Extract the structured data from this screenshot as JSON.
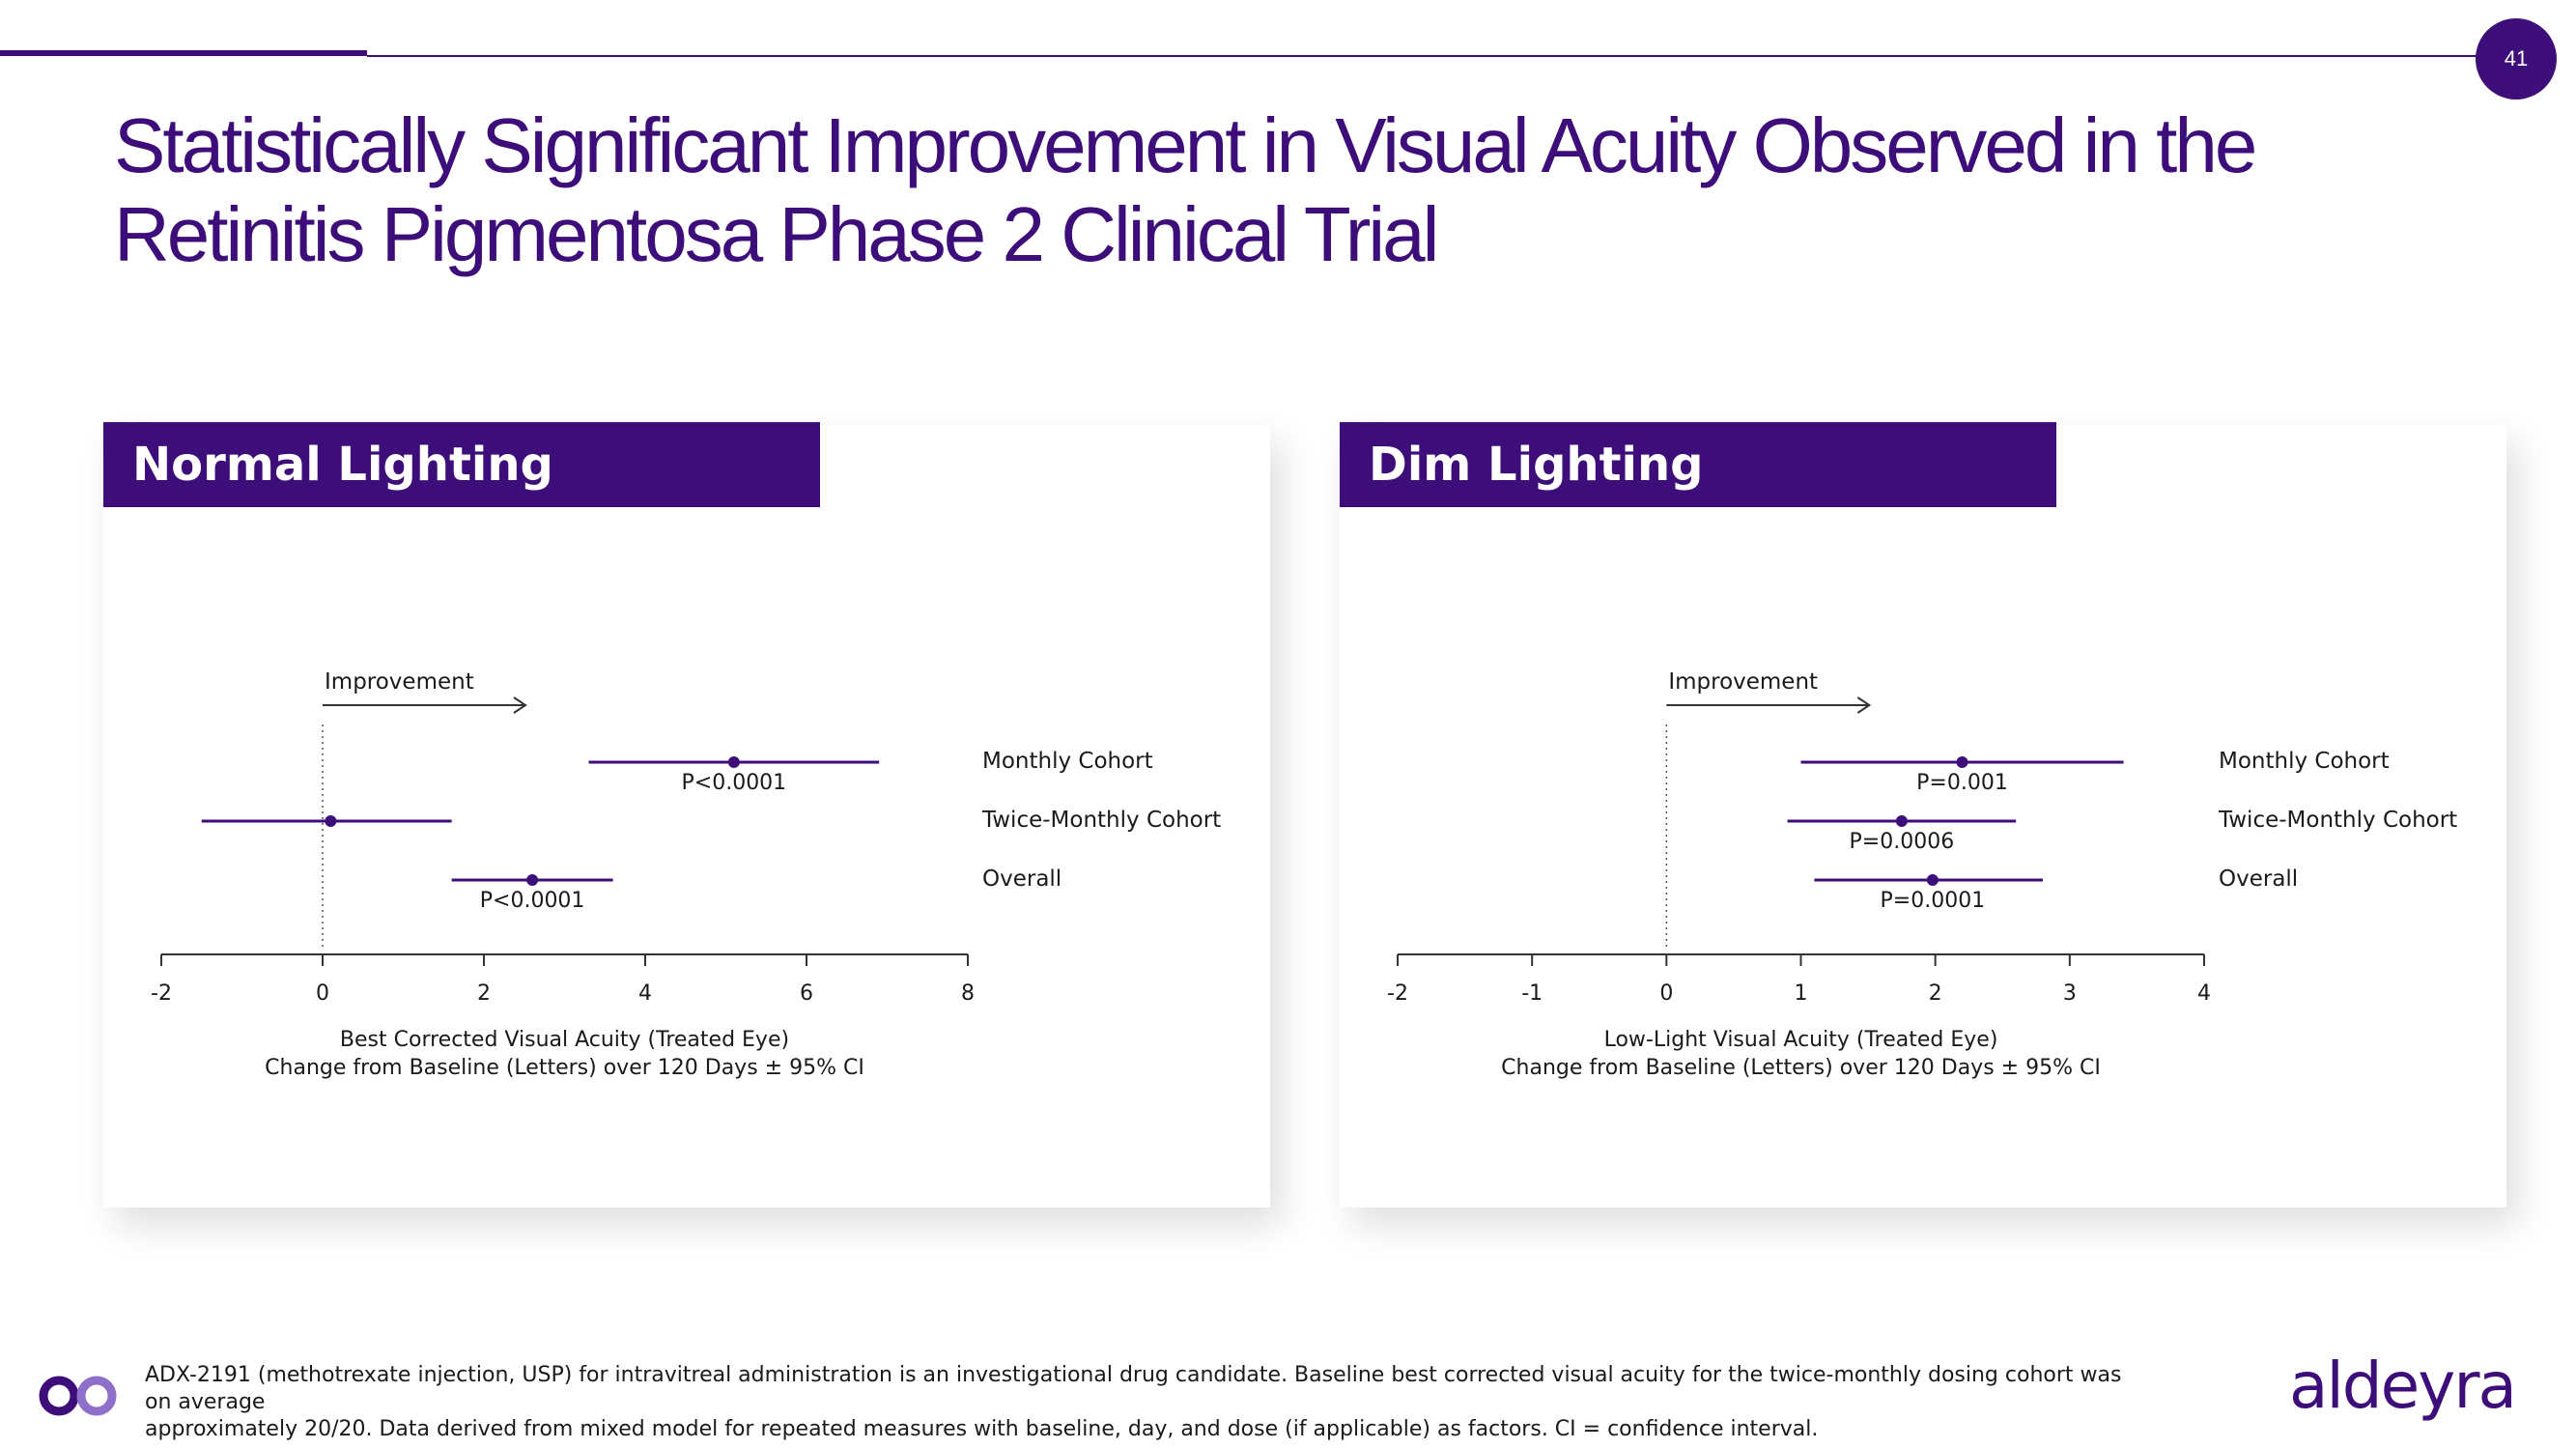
{
  "slide": {
    "page_number": "41",
    "title_line1": "Statistically Significant Improvement in Visual Acuity Observed in the",
    "title_line2": "Retinitis Pigmentosa Phase 2 Clinical Trial",
    "footer_line1": "ADX-2191 (methotrexate injection, USP) for intravitreal administration is an investigational drug candidate. Baseline best corrected visual acuity for the twice-monthly dosing cohort was on average",
    "footer_line2": "approximately 20/20. Data derived from mixed model for repeated measures with baseline, day, and dose (if applicable) as factors. CI = confidence interval.",
    "brand": "aldeyra",
    "accent_color": "#3d0d7a"
  },
  "chart_data": [
    {
      "type": "forest",
      "title": "Normal Lighting",
      "improvement_label": "Improvement",
      "xlabel_line1": "Best Corrected Visual Acuity (Treated Eye)",
      "xlabel_line2": "Change from Baseline (Letters) over 120 Days ± 95% CI",
      "xlim": [
        -2,
        8
      ],
      "ticks": [
        -2,
        0,
        2,
        4,
        6,
        8
      ],
      "tick_labels": [
        "-2",
        "0",
        "2",
        "4",
        "6",
        "8"
      ],
      "series": [
        {
          "name": "Monthly Cohort",
          "estimate": 5.1,
          "ci_low": 3.3,
          "ci_high": 6.9,
          "p_label": "P<0.0001"
        },
        {
          "name": "Twice-Monthly Cohort",
          "estimate": 0.1,
          "ci_low": -1.5,
          "ci_high": 1.6,
          "p_label": ""
        },
        {
          "name": "Overall",
          "estimate": 2.6,
          "ci_low": 1.6,
          "ci_high": 3.6,
          "p_label": "P<0.0001"
        }
      ]
    },
    {
      "type": "forest",
      "title": "Dim Lighting",
      "improvement_label": "Improvement",
      "xlabel_line1": "Low-Light Visual Acuity (Treated Eye)",
      "xlabel_line2": "Change from Baseline (Letters) over 120 Days ± 95% CI",
      "xlim": [
        -2,
        4
      ],
      "ticks": [
        -2,
        -1,
        0,
        1,
        2,
        3,
        4
      ],
      "tick_labels": [
        "-2",
        "-1",
        "0",
        "1",
        "2",
        "3",
        "4"
      ],
      "series": [
        {
          "name": "Monthly Cohort",
          "estimate": 2.2,
          "ci_low": 1.0,
          "ci_high": 3.4,
          "p_label": "P=0.001"
        },
        {
          "name": "Twice-Monthly Cohort",
          "estimate": 1.75,
          "ci_low": 0.9,
          "ci_high": 2.6,
          "p_label": "P=0.0006"
        },
        {
          "name": "Overall",
          "estimate": 1.98,
          "ci_low": 1.1,
          "ci_high": 2.8,
          "p_label": "P=0.0001"
        }
      ]
    }
  ]
}
